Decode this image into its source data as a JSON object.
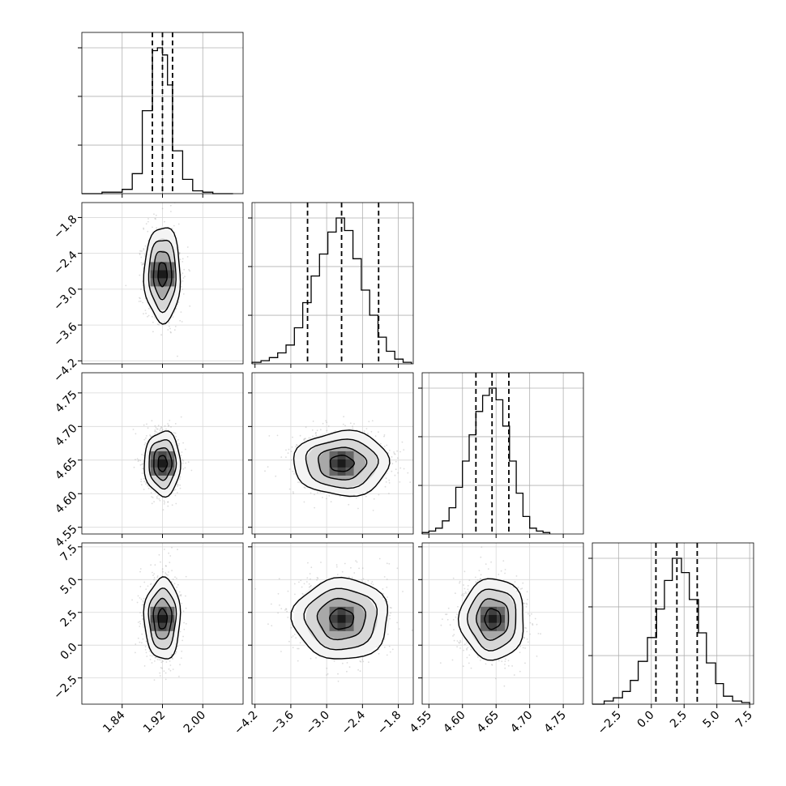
{
  "chart_data": {
    "type": "corner",
    "grid": true,
    "params": [
      {
        "xlim": [
          1.76,
          2.08
        ],
        "ticks": [
          1.84,
          1.92,
          2.0
        ],
        "tick_labels": [
          "1.84",
          "1.92",
          "2.00"
        ],
        "quantiles": [
          1.9,
          1.92,
          1.94
        ],
        "median": 1.92,
        "hist": {
          "edges": [
            1.76,
            1.78,
            1.8,
            1.82,
            1.84,
            1.86,
            1.88,
            1.9,
            1.91,
            1.92,
            1.93,
            1.94,
            1.96,
            1.98,
            2.0,
            2.02,
            2.04,
            2.06
          ],
          "counts": [
            0,
            0,
            1,
            1,
            3,
            14,
            58,
            100,
            102,
            97,
            76,
            30,
            10,
            2,
            1,
            0,
            0
          ]
        }
      },
      {
        "xlim": [
          -4.25,
          -1.55
        ],
        "ticks": [
          -4.2,
          -3.6,
          -3.0,
          -2.4,
          -1.8
        ],
        "tick_labels": [
          "−4.2",
          "−3.6",
          "−3.0",
          "−2.4",
          "−1.8"
        ],
        "quantiles": [
          -3.32,
          -2.75,
          -2.13
        ],
        "median": -2.75,
        "hist": {
          "edges": [
            -4.25,
            -4.1,
            -3.96,
            -3.82,
            -3.68,
            -3.54,
            -3.4,
            -3.26,
            -3.12,
            -2.98,
            -2.84,
            -2.7,
            -2.56,
            -2.42,
            -2.28,
            -2.14,
            -2.0,
            -1.86,
            -1.72,
            -1.58
          ],
          "counts": [
            1,
            2,
            4,
            7,
            12,
            23,
            39,
            56,
            70,
            84,
            93,
            85,
            67,
            47,
            31,
            17,
            8,
            3,
            1
          ]
        }
      },
      {
        "xlim": [
          4.54,
          4.78
        ],
        "ticks": [
          4.55,
          4.6,
          4.65,
          4.7,
          4.75
        ],
        "tick_labels": [
          "4.55",
          "4.60",
          "4.65",
          "4.70",
          "4.75"
        ],
        "quantiles": [
          4.62,
          4.644,
          4.669
        ],
        "median": 4.644,
        "hist": {
          "edges": [
            4.54,
            4.55,
            4.56,
            4.57,
            4.58,
            4.59,
            4.6,
            4.61,
            4.62,
            4.63,
            4.64,
            4.65,
            4.66,
            4.67,
            4.68,
            4.69,
            4.7,
            4.71,
            4.72,
            4.73
          ],
          "counts": [
            1,
            2,
            4,
            9,
            18,
            32,
            50,
            68,
            84,
            95,
            100,
            92,
            74,
            50,
            28,
            12,
            4,
            2,
            1
          ]
        }
      },
      {
        "xlim": [
          -4.5,
          7.8
        ],
        "ticks": [
          -2.5,
          0.0,
          2.5,
          5.0,
          7.5
        ],
        "tick_labels": [
          "−2.5",
          "0.0",
          "2.5",
          "5.0",
          "7.5"
        ],
        "quantiles": [
          0.35,
          1.95,
          3.5
        ],
        "median": 1.95,
        "hist": {
          "edges": [
            -4.5,
            -3.6,
            -2.9,
            -2.2,
            -1.6,
            -1.0,
            -0.3,
            0.4,
            1.0,
            1.6,
            2.3,
            2.9,
            3.6,
            4.2,
            4.9,
            5.5,
            6.2,
            6.9,
            7.5
          ],
          "counts": [
            0,
            2,
            4,
            8,
            15,
            27,
            42,
            60,
            78,
            92,
            83,
            66,
            45,
            26,
            13,
            5,
            2,
            1
          ]
        }
      }
    ],
    "pairs": [
      {
        "row": 1,
        "col": 0,
        "center": [
          1.92,
          -2.75
        ],
        "sigma": [
          0.018,
          0.4
        ]
      },
      {
        "row": 2,
        "col": 0,
        "center": [
          1.92,
          4.645
        ],
        "sigma": [
          0.018,
          0.024
        ]
      },
      {
        "row": 2,
        "col": 1,
        "center": [
          -2.75,
          4.645
        ],
        "sigma": [
          0.4,
          0.024
        ]
      },
      {
        "row": 3,
        "col": 0,
        "center": [
          1.92,
          2.0
        ],
        "sigma": [
          0.018,
          1.55
        ]
      },
      {
        "row": 3,
        "col": 1,
        "center": [
          -2.75,
          2.0
        ],
        "sigma": [
          0.4,
          1.55
        ]
      },
      {
        "row": 3,
        "col": 2,
        "center": [
          4.645,
          2.0
        ],
        "sigma": [
          0.024,
          1.55
        ]
      }
    ],
    "contour_levels_sigma": [
      0.5,
      1.0,
      1.5,
      2.0
    ],
    "xlabel": "",
    "ylabel": ""
  }
}
